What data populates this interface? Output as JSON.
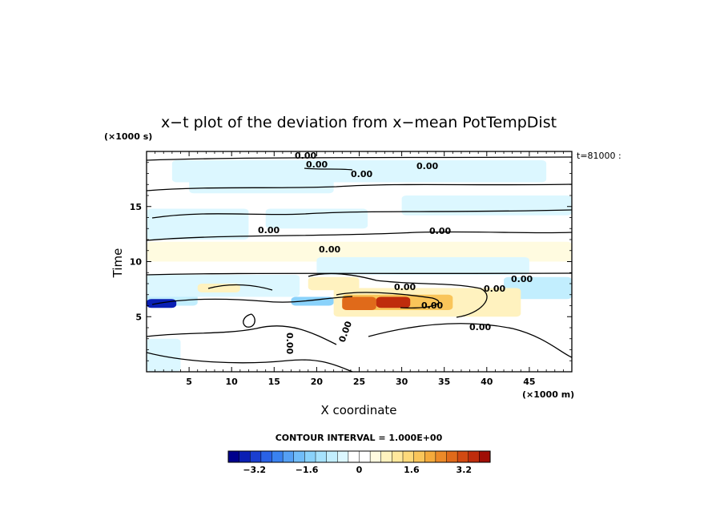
{
  "chart_data": {
    "type": "heatmap",
    "title": "x−t plot of the deviation from x−mean PotTempDist",
    "xlabel": "X coordinate",
    "ylabel": "Time",
    "x_unit": "(×1000 m)",
    "y_unit": "(×1000 s)",
    "time_label": "t=81000 :",
    "xlim": [
      0,
      50
    ],
    "ylim": [
      0,
      20
    ],
    "x_ticks": [
      5,
      10,
      15,
      20,
      25,
      30,
      35,
      40,
      45
    ],
    "y_ticks": [
      5,
      10,
      15
    ],
    "contour_interval_text": "CONTOUR INTERVAL = 1.000E+00",
    "contour_labels": [
      "0.00",
      "0.00",
      "0.00",
      "0.00",
      "0.00",
      "0.00",
      "0.00",
      "0.00",
      "0.00",
      "0.00",
      "0.00",
      "0.00",
      "0.00",
      "0.00"
    ],
    "colorbar": {
      "range": [
        -4.0,
        4.0
      ],
      "tick_labels": [
        "−3.2",
        "−1.6",
        "0",
        "1.6",
        "3.2"
      ],
      "colors": [
        "#00008c",
        "#0a1fb4",
        "#1a3fd0",
        "#2a62e6",
        "#3a82f0",
        "#55a0f4",
        "#70bcf8",
        "#8ad2fb",
        "#a6e2fd",
        "#c2eefe",
        "#dcf7ff",
        "#ffffff",
        "#ffffff",
        "#fffbe0",
        "#fff2bf",
        "#ffe89c",
        "#fdd97a",
        "#f9c55a",
        "#f4aa3c",
        "#ec8a28",
        "#e06a1a",
        "#d24a12",
        "#bf2c0c",
        "#a00e06"
      ]
    },
    "regions": [
      {
        "x0": 0,
        "x1": 50,
        "y0": 18.6,
        "y1": 20,
        "value": 0.3
      },
      {
        "x0": 3,
        "x1": 47,
        "y0": 17.2,
        "y1": 19.2,
        "value": -0.4
      },
      {
        "x0": 5,
        "x1": 22,
        "y0": 16.2,
        "y1": 17.8,
        "value": -0.6
      },
      {
        "x0": 30,
        "x1": 50,
        "y0": 14.2,
        "y1": 16.0,
        "value": -0.5
      },
      {
        "x0": 0,
        "x1": 12,
        "y0": 12.0,
        "y1": 14.8,
        "value": -0.5
      },
      {
        "x0": 14,
        "x1": 26,
        "y0": 13.0,
        "y1": 14.8,
        "value": -0.4
      },
      {
        "x0": 0,
        "x1": 50,
        "y0": 10.0,
        "y1": 11.8,
        "value": 0.4
      },
      {
        "x0": 20,
        "x1": 45,
        "y0": 8.8,
        "y1": 10.4,
        "value": -0.5
      },
      {
        "x0": 0,
        "x1": 6,
        "y0": 6.0,
        "y1": 8.8,
        "value": -0.9
      },
      {
        "x0": 0,
        "x1": 3.5,
        "y0": 5.8,
        "y1": 6.6,
        "value": -3.4
      },
      {
        "x0": 0,
        "x1": 18,
        "y0": 6.8,
        "y1": 8.8,
        "value": -0.5
      },
      {
        "x0": 17,
        "x1": 22,
        "y0": 6.0,
        "y1": 6.8,
        "value": -1.6
      },
      {
        "x0": 42,
        "x1": 50,
        "y0": 6.6,
        "y1": 8.6,
        "value": -0.9
      },
      {
        "x0": 6,
        "x1": 11,
        "y0": 7.2,
        "y1": 8.0,
        "value": 0.8
      },
      {
        "x0": 19,
        "x1": 25,
        "y0": 7.4,
        "y1": 8.6,
        "value": 0.9
      },
      {
        "x0": 22,
        "x1": 44,
        "y0": 5.0,
        "y1": 7.6,
        "value": 0.9
      },
      {
        "x0": 23,
        "x1": 36,
        "y0": 5.6,
        "y1": 7.0,
        "value": 1.9
      },
      {
        "x0": 23,
        "x1": 27,
        "y0": 5.6,
        "y1": 6.8,
        "value": 2.9
      },
      {
        "x0": 27,
        "x1": 31,
        "y0": 5.8,
        "y1": 6.8,
        "value": 3.5
      },
      {
        "x0": 0,
        "x1": 50,
        "y0": 0.5,
        "y1": 3.8,
        "value": 0.2
      },
      {
        "x0": 6,
        "x1": 20,
        "y0": 3.4,
        "y1": 5.0,
        "value": -0.3
      },
      {
        "x0": 32,
        "x1": 46,
        "y0": 2.2,
        "y1": 4.6,
        "value": -0.3
      },
      {
        "x0": 0,
        "x1": 4,
        "y0": 0,
        "y1": 3.0,
        "value": -0.4
      }
    ]
  }
}
